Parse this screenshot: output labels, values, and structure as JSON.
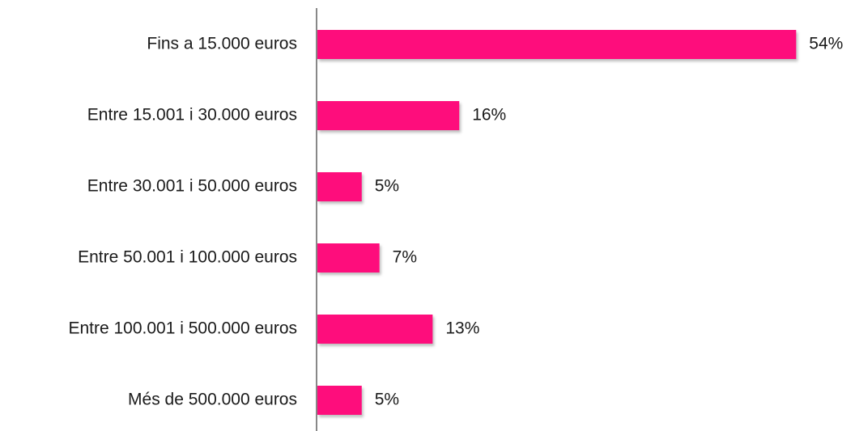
{
  "chart_data": {
    "type": "bar",
    "orientation": "horizontal",
    "categories": [
      "Fins a 15.000 euros",
      "Entre 15.001 i 30.000 euros",
      "Entre 30.001 i 50.000 euros",
      "Entre 50.001 i 100.000 euros",
      "Entre 100.001 i 500.000 euros",
      "Més de 500.000 euros"
    ],
    "values": [
      54,
      16,
      5,
      7,
      13,
      5
    ],
    "value_labels": [
      "54%",
      "16%",
      "5%",
      "7%",
      "13%",
      "5%"
    ],
    "color": "#fe0a7b"
  }
}
